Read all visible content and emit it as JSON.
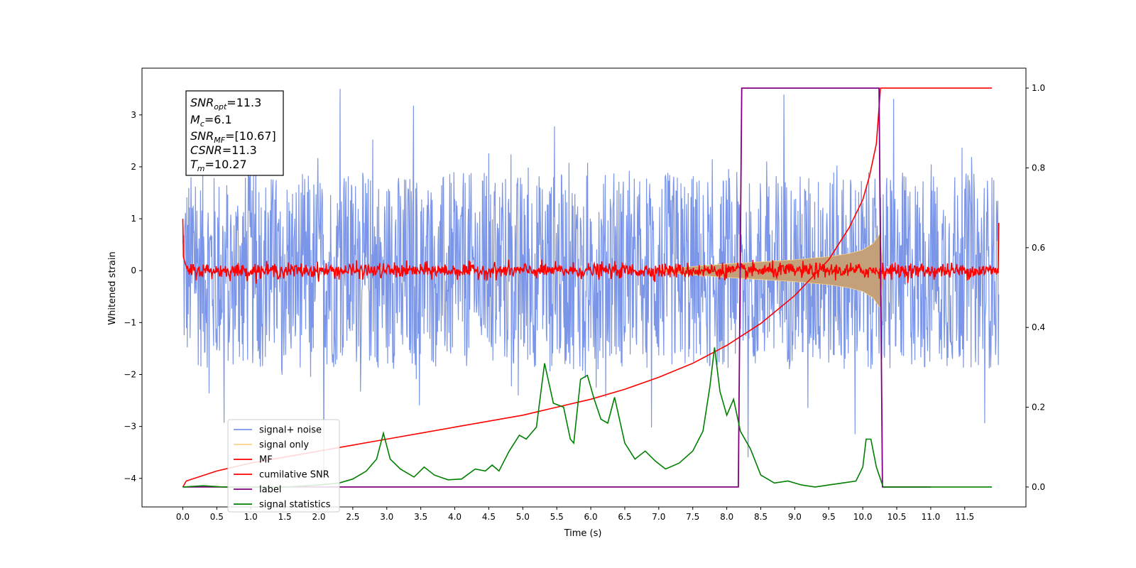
{
  "chart_data": {
    "type": "line",
    "xlabel": "Time (s)",
    "ylabel": "Whitened strain",
    "xlim": [
      -0.6,
      12.4
    ],
    "ylim": [
      -4.55,
      3.9
    ],
    "ylim_right": [
      -0.05,
      1.05
    ],
    "x_ticks": [
      "0.0",
      "0.5",
      "1.0",
      "1.5",
      "2.0",
      "2.5",
      "3.0",
      "3.5",
      "4.0",
      "4.5",
      "5.0",
      "5.5",
      "6.0",
      "6.5",
      "7.0",
      "7.5",
      "8.0",
      "8.5",
      "9.0",
      "9.5",
      "10.0",
      "10.5",
      "11.0",
      "11.5"
    ],
    "y_ticks": [
      "3",
      "2",
      "1",
      "0",
      "−1",
      "−2",
      "−3",
      "−4"
    ],
    "y_ticks_right": [
      "0.0",
      "0.2",
      "0.4",
      "0.6",
      "0.8",
      "1.0"
    ],
    "legend_position": "lower-left",
    "legend": [
      {
        "label": "signal+ noise",
        "color": "#7b96e8"
      },
      {
        "label": "signal only",
        "color": "#f9d386"
      },
      {
        "label": "MF",
        "color": "#ff0000"
      },
      {
        "label": "cumilative SNR",
        "color": "#ff0000"
      },
      {
        "label": "label",
        "color": "#800080"
      },
      {
        "label": "signal statistics",
        "color": "#008000"
      }
    ],
    "annotation": {
      "snr_opt_base": "SNR",
      "snr_opt_sub": "opt",
      "snr_opt_val": "=11.3",
      "mc_base": "M",
      "mc_sub": "c",
      "mc_val": "=6.1",
      "snr_mf_base": "SNR",
      "snr_mf_sub": "MF",
      "snr_mf_val": "=[10.67]",
      "csnr_base": "CSNR",
      "csnr_val": "=11.3",
      "tm_base": "T",
      "tm_sub": "m",
      "tm_val": "=10.27"
    },
    "series": [
      {
        "name": "signal+ noise",
        "axis": "left",
        "description_values": "noise envelope",
        "x_range": [
          0.0,
          12.0
        ],
        "typical_amplitude": 1.9,
        "peak_max": 3.5,
        "peak_min": -4.05
      },
      {
        "name": "signal only",
        "axis": "left",
        "x": [
          7.0,
          7.5,
          8.0,
          8.5,
          9.0,
          9.5,
          9.8,
          10.0,
          10.15,
          10.22,
          10.26,
          10.3
        ],
        "envelope": [
          0.02,
          0.08,
          0.13,
          0.17,
          0.21,
          0.27,
          0.33,
          0.4,
          0.52,
          0.65,
          0.72,
          0.0
        ]
      },
      {
        "name": "MF",
        "axis": "left",
        "x_range": [
          0.0,
          12.0
        ],
        "typical_amplitude": 0.12,
        "edge_value": 1.0
      },
      {
        "name": "cumilative SNR",
        "axis": "right",
        "x": [
          0.0,
          0.05,
          0.5,
          1.0,
          1.5,
          2.0,
          2.5,
          3.0,
          3.5,
          4.0,
          4.5,
          5.0,
          5.5,
          6.0,
          6.5,
          7.0,
          7.5,
          8.0,
          8.5,
          9.0,
          9.5,
          9.8,
          10.0,
          10.1,
          10.2,
          10.26,
          11.0,
          11.9
        ],
        "values": [
          0.0,
          0.015,
          0.04,
          0.06,
          0.075,
          0.09,
          0.105,
          0.12,
          0.135,
          0.15,
          0.165,
          0.18,
          0.2,
          0.22,
          0.245,
          0.275,
          0.31,
          0.355,
          0.41,
          0.48,
          0.57,
          0.65,
          0.72,
          0.78,
          0.86,
          1.0,
          1.0,
          1.0
        ]
      },
      {
        "name": "label",
        "axis": "right",
        "x": [
          0.0,
          8.17,
          8.22,
          10.24,
          10.29,
          11.0
        ],
        "values": [
          0.0,
          0.0,
          1.0,
          1.0,
          0.0,
          0.0
        ]
      },
      {
        "name": "signal statistics",
        "axis": "right",
        "x": [
          0.0,
          0.3,
          0.6,
          1.0,
          1.5,
          2.0,
          2.3,
          2.5,
          2.7,
          2.85,
          2.95,
          3.05,
          3.2,
          3.4,
          3.55,
          3.7,
          3.9,
          4.1,
          4.3,
          4.45,
          4.55,
          4.65,
          4.8,
          4.95,
          5.05,
          5.2,
          5.32,
          5.45,
          5.6,
          5.7,
          5.75,
          5.85,
          5.95,
          6.05,
          6.15,
          6.25,
          6.35,
          6.5,
          6.65,
          6.8,
          6.95,
          7.1,
          7.3,
          7.5,
          7.65,
          7.75,
          7.82,
          7.9,
          8.0,
          8.1,
          8.2,
          8.35,
          8.5,
          8.7,
          8.9,
          9.1,
          9.3,
          9.5,
          9.7,
          9.9,
          10.0,
          10.05,
          10.12,
          10.2,
          10.3,
          10.5,
          11.0,
          11.5,
          11.9
        ],
        "values": [
          0.0,
          0.003,
          0.0,
          0.0,
          0.0,
          0.005,
          0.01,
          0.02,
          0.04,
          0.07,
          0.135,
          0.07,
          0.045,
          0.025,
          0.05,
          0.03,
          0.018,
          0.02,
          0.045,
          0.04,
          0.055,
          0.04,
          0.09,
          0.13,
          0.12,
          0.15,
          0.31,
          0.21,
          0.2,
          0.12,
          0.11,
          0.27,
          0.28,
          0.22,
          0.17,
          0.16,
          0.225,
          0.11,
          0.07,
          0.09,
          0.065,
          0.045,
          0.06,
          0.09,
          0.14,
          0.25,
          0.35,
          0.24,
          0.18,
          0.22,
          0.14,
          0.095,
          0.03,
          0.01,
          0.015,
          0.005,
          0.0,
          0.005,
          0.01,
          0.015,
          0.05,
          0.12,
          0.12,
          0.05,
          0.0,
          0.0,
          0.0,
          0.0,
          0.0
        ]
      }
    ]
  }
}
